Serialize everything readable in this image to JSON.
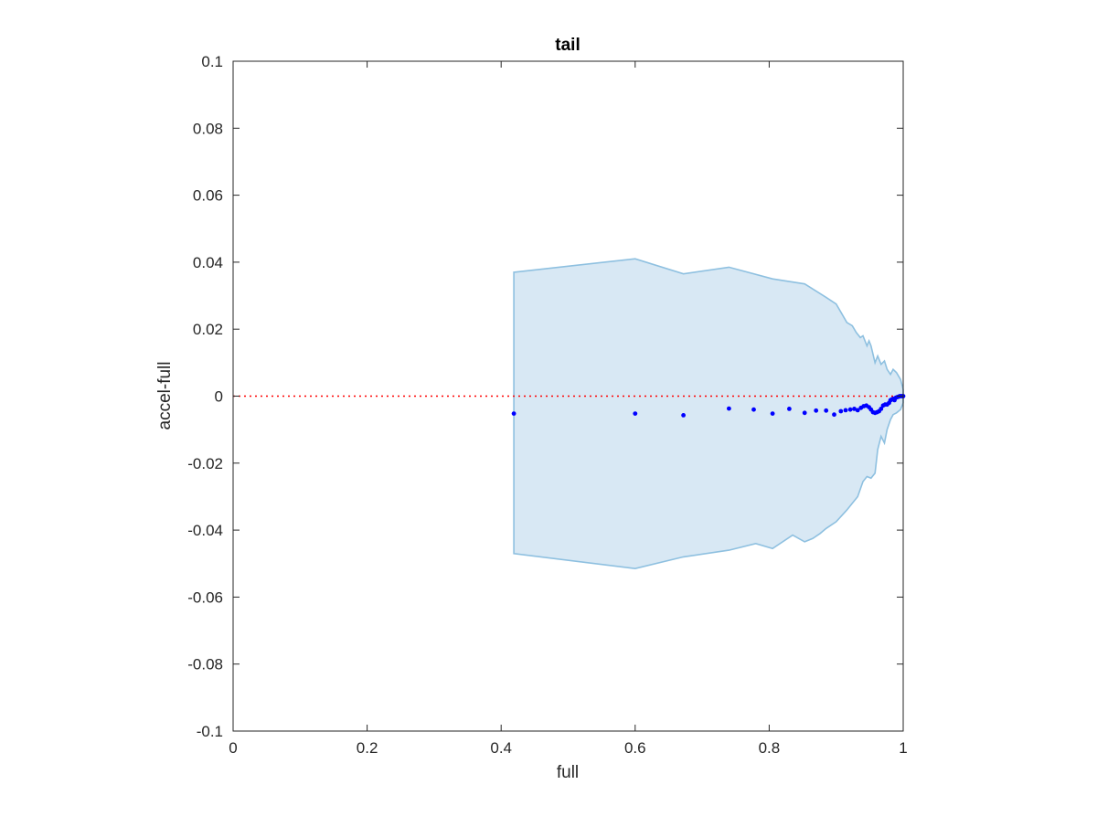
{
  "chart_data": {
    "type": "scatter",
    "title": "tail",
    "xlabel": "full",
    "ylabel": "accel-full",
    "xlim": [
      0,
      1
    ],
    "ylim": [
      -0.1,
      0.1
    ],
    "x_ticks": [
      0,
      0.2,
      0.4,
      0.6,
      0.8,
      1
    ],
    "x_tick_labels": [
      "0",
      "0.2",
      "0.4",
      "0.6",
      "0.8",
      "1"
    ],
    "y_ticks": [
      0.1,
      0.08,
      0.06,
      0.04,
      0.02,
      0,
      -0.02,
      -0.04,
      -0.06,
      -0.08,
      -0.1
    ],
    "y_tick_labels": [
      "0.1",
      "0.08",
      "0.06",
      "0.04",
      "0.02",
      "0",
      "-0.02",
      "-0.04",
      "-0.06",
      "-0.08",
      "-0.1"
    ],
    "grid": false,
    "legend": "none",
    "reference_line": {
      "y": 0,
      "style": "dotted",
      "color": "#ff0000"
    },
    "band": {
      "fill": "#d8e8f4",
      "stroke": "#8ec0e0",
      "upper": [
        [
          0.419,
          0.037
        ],
        [
          0.6,
          0.041
        ],
        [
          0.672,
          0.0365
        ],
        [
          0.74,
          0.0385
        ],
        [
          0.805,
          0.035
        ],
        [
          0.853,
          0.0335
        ],
        [
          0.865,
          0.032
        ],
        [
          0.885,
          0.0295
        ],
        [
          0.9,
          0.0275
        ],
        [
          0.916,
          0.022
        ],
        [
          0.924,
          0.021
        ],
        [
          0.93,
          0.019
        ],
        [
          0.936,
          0.0175
        ],
        [
          0.94,
          0.018
        ],
        [
          0.946,
          0.015
        ],
        [
          0.949,
          0.0165
        ],
        [
          0.952,
          0.015
        ],
        [
          0.958,
          0.01
        ],
        [
          0.962,
          0.012
        ],
        [
          0.967,
          0.0095
        ],
        [
          0.972,
          0.0105
        ],
        [
          0.976,
          0.008
        ],
        [
          0.981,
          0.0065
        ],
        [
          0.985,
          0.008
        ],
        [
          0.99,
          0.007
        ],
        [
          0.996,
          0.005
        ],
        [
          1.0,
          0.002
        ]
      ],
      "lower": [
        [
          1.0,
          -0.002
        ],
        [
          0.996,
          -0.004
        ],
        [
          0.99,
          -0.005
        ],
        [
          0.985,
          -0.0055
        ],
        [
          0.981,
          -0.007
        ],
        [
          0.976,
          -0.01
        ],
        [
          0.972,
          -0.014
        ],
        [
          0.967,
          -0.012
        ],
        [
          0.962,
          -0.016
        ],
        [
          0.958,
          -0.023
        ],
        [
          0.952,
          -0.0245
        ],
        [
          0.946,
          -0.024
        ],
        [
          0.94,
          -0.0255
        ],
        [
          0.932,
          -0.03
        ],
        [
          0.924,
          -0.032
        ],
        [
          0.916,
          -0.034
        ],
        [
          0.9,
          -0.0375
        ],
        [
          0.885,
          -0.0395
        ],
        [
          0.876,
          -0.041
        ],
        [
          0.865,
          -0.0425
        ],
        [
          0.853,
          -0.0435
        ],
        [
          0.835,
          -0.0415
        ],
        [
          0.805,
          -0.0455
        ],
        [
          0.78,
          -0.044
        ],
        [
          0.74,
          -0.046
        ],
        [
          0.672,
          -0.048
        ],
        [
          0.6,
          -0.0515
        ],
        [
          0.419,
          -0.047
        ]
      ]
    },
    "series": [
      {
        "color": "#0000ff",
        "points": [
          [
            0.419,
            -0.0052
          ],
          [
            0.6,
            -0.0052
          ],
          [
            0.672,
            -0.0057
          ],
          [
            0.74,
            -0.0037
          ],
          [
            0.777,
            -0.004
          ],
          [
            0.805,
            -0.0052
          ],
          [
            0.83,
            -0.0038
          ],
          [
            0.853,
            -0.005
          ],
          [
            0.87,
            -0.0043
          ],
          [
            0.885,
            -0.0043
          ],
          [
            0.897,
            -0.0055
          ],
          [
            0.907,
            -0.0045
          ],
          [
            0.914,
            -0.0042
          ],
          [
            0.921,
            -0.004
          ],
          [
            0.927,
            -0.0038
          ],
          [
            0.932,
            -0.0042
          ],
          [
            0.937,
            -0.0035
          ],
          [
            0.941,
            -0.003
          ],
          [
            0.945,
            -0.0028
          ],
          [
            0.949,
            -0.0033
          ],
          [
            0.952,
            -0.004
          ],
          [
            0.955,
            -0.0048
          ],
          [
            0.958,
            -0.005
          ],
          [
            0.961,
            -0.0048
          ],
          [
            0.964,
            -0.0045
          ],
          [
            0.967,
            -0.0038
          ],
          [
            0.97,
            -0.0028
          ],
          [
            0.973,
            -0.0025
          ],
          [
            0.976,
            -0.0025
          ],
          [
            0.979,
            -0.002
          ],
          [
            0.981,
            -0.0012
          ],
          [
            0.983,
            -0.001
          ],
          [
            0.985,
            -0.0008
          ],
          [
            0.987,
            -0.0012
          ],
          [
            0.989,
            -0.0005
          ],
          [
            0.991,
            -0.0003
          ],
          [
            0.993,
            -0.0002
          ],
          [
            0.995,
            0.0
          ],
          [
            0.997,
            0.0
          ],
          [
            0.999,
            0.0
          ],
          [
            1.0,
            0.0
          ]
        ]
      }
    ]
  }
}
